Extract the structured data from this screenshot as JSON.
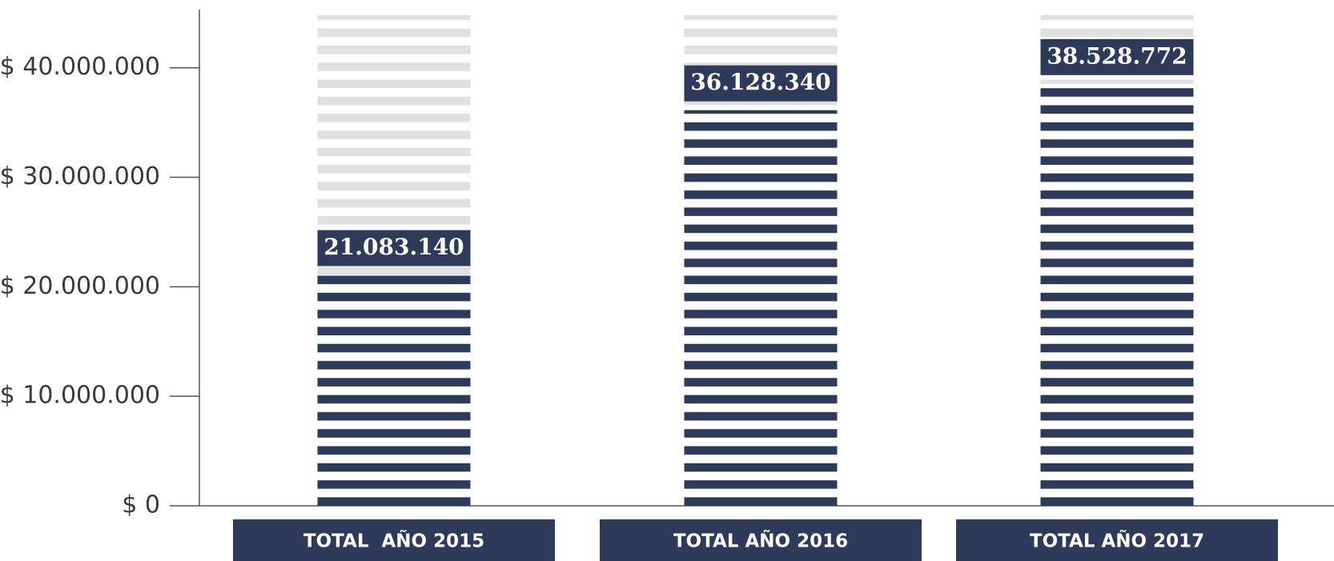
{
  "chart_data": {
    "type": "bar",
    "categories": [
      "TOTAL  AÑO 2015",
      "TOTAL AÑO 2016",
      "TOTAL AÑO 2017"
    ],
    "values": [
      21083140,
      36128340,
      38528772
    ],
    "value_labels": [
      "21.083.140",
      "36.128.340",
      "38.528.772"
    ],
    "color": "#2e3a59",
    "ylim": [
      0,
      44000000
    ],
    "yticks": [
      {
        "value": 0,
        "label": "$ 0"
      },
      {
        "value": 10000000,
        "label": "$ 10.000.000"
      },
      {
        "value": 20000000,
        "label": "$ 20.000.000"
      },
      {
        "value": 30000000,
        "label": "$ 30.000.000"
      },
      {
        "value": 40000000,
        "label": "$ 40.000.000"
      }
    ]
  }
}
